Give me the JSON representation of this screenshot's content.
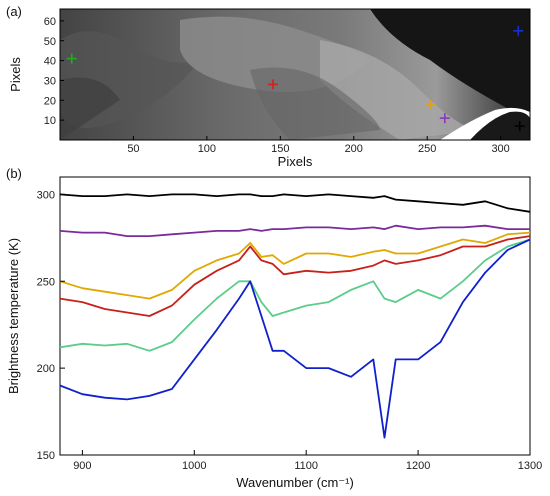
{
  "panels": {
    "a_label": "(a)",
    "b_label": "(b)"
  },
  "chart_data": [
    {
      "type": "heatmap",
      "panel": "(a)",
      "xlabel": "Pixels",
      "ylabel": "Pixels",
      "xlim": [
        0,
        320
      ],
      "ylim": [
        0,
        66
      ],
      "xticks": [
        "50",
        "100",
        "150",
        "200",
        "250",
        "300"
      ],
      "yticks": [
        "10",
        "20",
        "30",
        "40",
        "50",
        "60"
      ],
      "colormap": "grayscale",
      "markers": [
        {
          "name": "green",
          "color": "#22aa22",
          "x": 8,
          "y": 41
        },
        {
          "name": "red",
          "color": "#cc2222",
          "x": 145,
          "y": 28
        },
        {
          "name": "orange",
          "color": "#e0a020",
          "x": 252,
          "y": 18
        },
        {
          "name": "purple",
          "color": "#8a3ab9",
          "x": 262,
          "y": 11
        },
        {
          "name": "blue",
          "color": "#1a2fd0",
          "x": 312,
          "y": 55
        },
        {
          "name": "black",
          "color": "#000000",
          "x": 313,
          "y": 7
        }
      ]
    },
    {
      "type": "line",
      "panel": "(b)",
      "xlabel": "Wavenumber (cm⁻¹)",
      "ylabel": "Brightness temperature (K)",
      "xlim": [
        880,
        1300
      ],
      "ylim": [
        150,
        310
      ],
      "xticks": [
        "900",
        "1000",
        "1100",
        "1200",
        "1300"
      ],
      "yticks": [
        "150",
        "200",
        "250",
        "300"
      ],
      "x": [
        880,
        900,
        920,
        940,
        960,
        980,
        1000,
        1020,
        1040,
        1050,
        1060,
        1070,
        1080,
        1100,
        1120,
        1140,
        1160,
        1170,
        1180,
        1200,
        1220,
        1240,
        1260,
        1280,
        1300
      ],
      "series": [
        {
          "name": "black",
          "color": "#000000",
          "values": [
            300,
            299,
            299,
            300,
            299,
            300,
            300,
            299,
            300,
            300,
            299,
            299,
            300,
            299,
            300,
            299,
            298,
            299,
            297,
            296,
            295,
            294,
            296,
            292,
            290
          ]
        },
        {
          "name": "purple",
          "color": "#7a2a9a",
          "values": [
            279,
            278,
            278,
            276,
            276,
            277,
            278,
            279,
            279,
            280,
            279,
            280,
            280,
            281,
            281,
            280,
            281,
            280,
            282,
            280,
            281,
            281,
            282,
            280,
            280
          ]
        },
        {
          "name": "orange",
          "color": "#e0a800",
          "values": [
            250,
            246,
            244,
            242,
            240,
            245,
            256,
            262,
            266,
            272,
            264,
            265,
            260,
            266,
            266,
            264,
            267,
            268,
            266,
            266,
            270,
            274,
            272,
            277,
            278
          ]
        },
        {
          "name": "red",
          "color": "#c8201a",
          "values": [
            240,
            238,
            234,
            232,
            230,
            236,
            248,
            256,
            262,
            270,
            262,
            260,
            254,
            256,
            255,
            256,
            259,
            262,
            260,
            262,
            265,
            270,
            270,
            274,
            276
          ]
        },
        {
          "name": "green",
          "color": "#5ccc8a",
          "values": [
            212,
            214,
            213,
            214,
            210,
            215,
            228,
            240,
            250,
            250,
            238,
            230,
            232,
            236,
            238,
            245,
            250,
            240,
            238,
            245,
            240,
            250,
            262,
            270,
            274
          ]
        },
        {
          "name": "blue",
          "color": "#1020cc",
          "values": [
            190,
            185,
            183,
            182,
            184,
            188,
            205,
            222,
            240,
            250,
            230,
            210,
            210,
            200,
            200,
            195,
            205,
            160,
            205,
            205,
            215,
            238,
            255,
            268,
            274
          ]
        }
      ]
    }
  ]
}
